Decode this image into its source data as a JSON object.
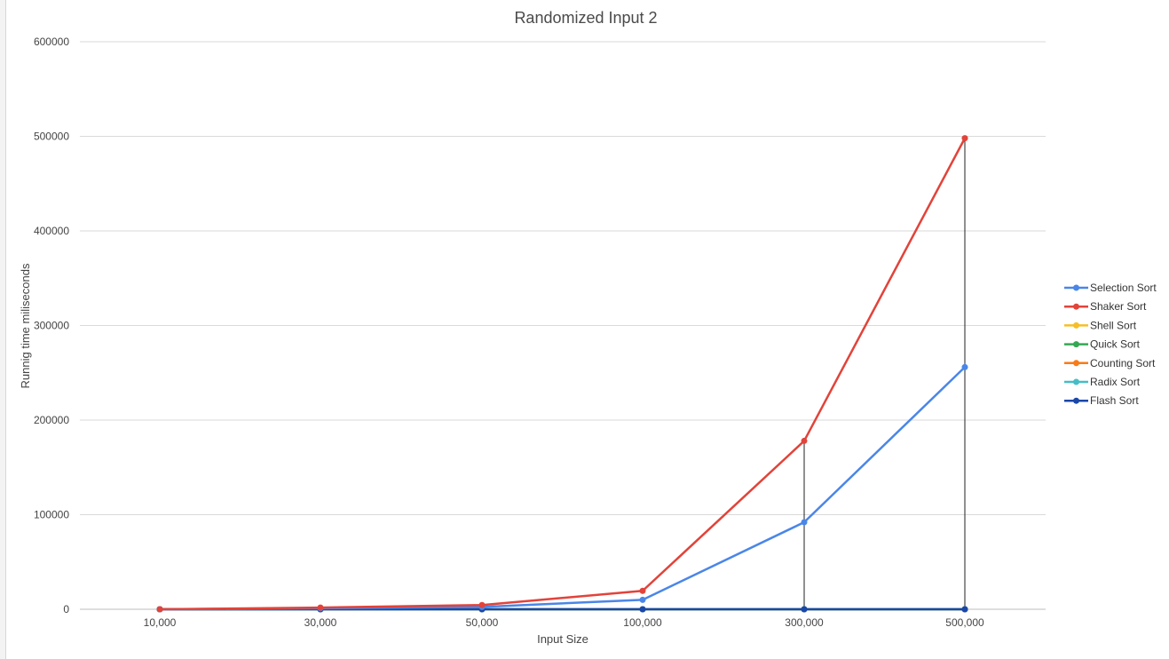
{
  "chart_data": {
    "type": "line",
    "title": "Randomized Input 2",
    "xlabel": "Input Size",
    "ylabel": "Runnig time miliseconds",
    "categories": [
      "10,000",
      "30,000",
      "50,000",
      "100,000",
      "300,000",
      "500,000"
    ],
    "ylim": [
      0,
      600000
    ],
    "yticks": [
      "0",
      "100000",
      "200000",
      "300000",
      "400000",
      "500000",
      "600000"
    ],
    "grid": true,
    "legend_position": "right",
    "series": [
      {
        "name": "Selection Sort",
        "color": "#4a86e8",
        "values": [
          0,
          1000,
          2500,
          10000,
          92000,
          256000
        ]
      },
      {
        "name": "Shaker Sort",
        "color": "#e2433a",
        "values": [
          0,
          1800,
          4500,
          19500,
          178000,
          498000
        ]
      },
      {
        "name": "Shell Sort",
        "color": "#f6bf26",
        "values": [
          0,
          0,
          0,
          0,
          0,
          0
        ]
      },
      {
        "name": "Quick Sort",
        "color": "#34a853",
        "values": [
          0,
          0,
          0,
          0,
          0,
          0
        ]
      },
      {
        "name": "Counting Sort",
        "color": "#fa7b17",
        "values": [
          0,
          0,
          0,
          0,
          0,
          0
        ]
      },
      {
        "name": "Radix Sort",
        "color": "#46bdc6",
        "values": [
          0,
          0,
          0,
          0,
          0,
          0
        ]
      },
      {
        "name": "Flash Sort",
        "color": "#1a47a8",
        "values": [
          0,
          0,
          0,
          0,
          0,
          0
        ]
      }
    ]
  }
}
